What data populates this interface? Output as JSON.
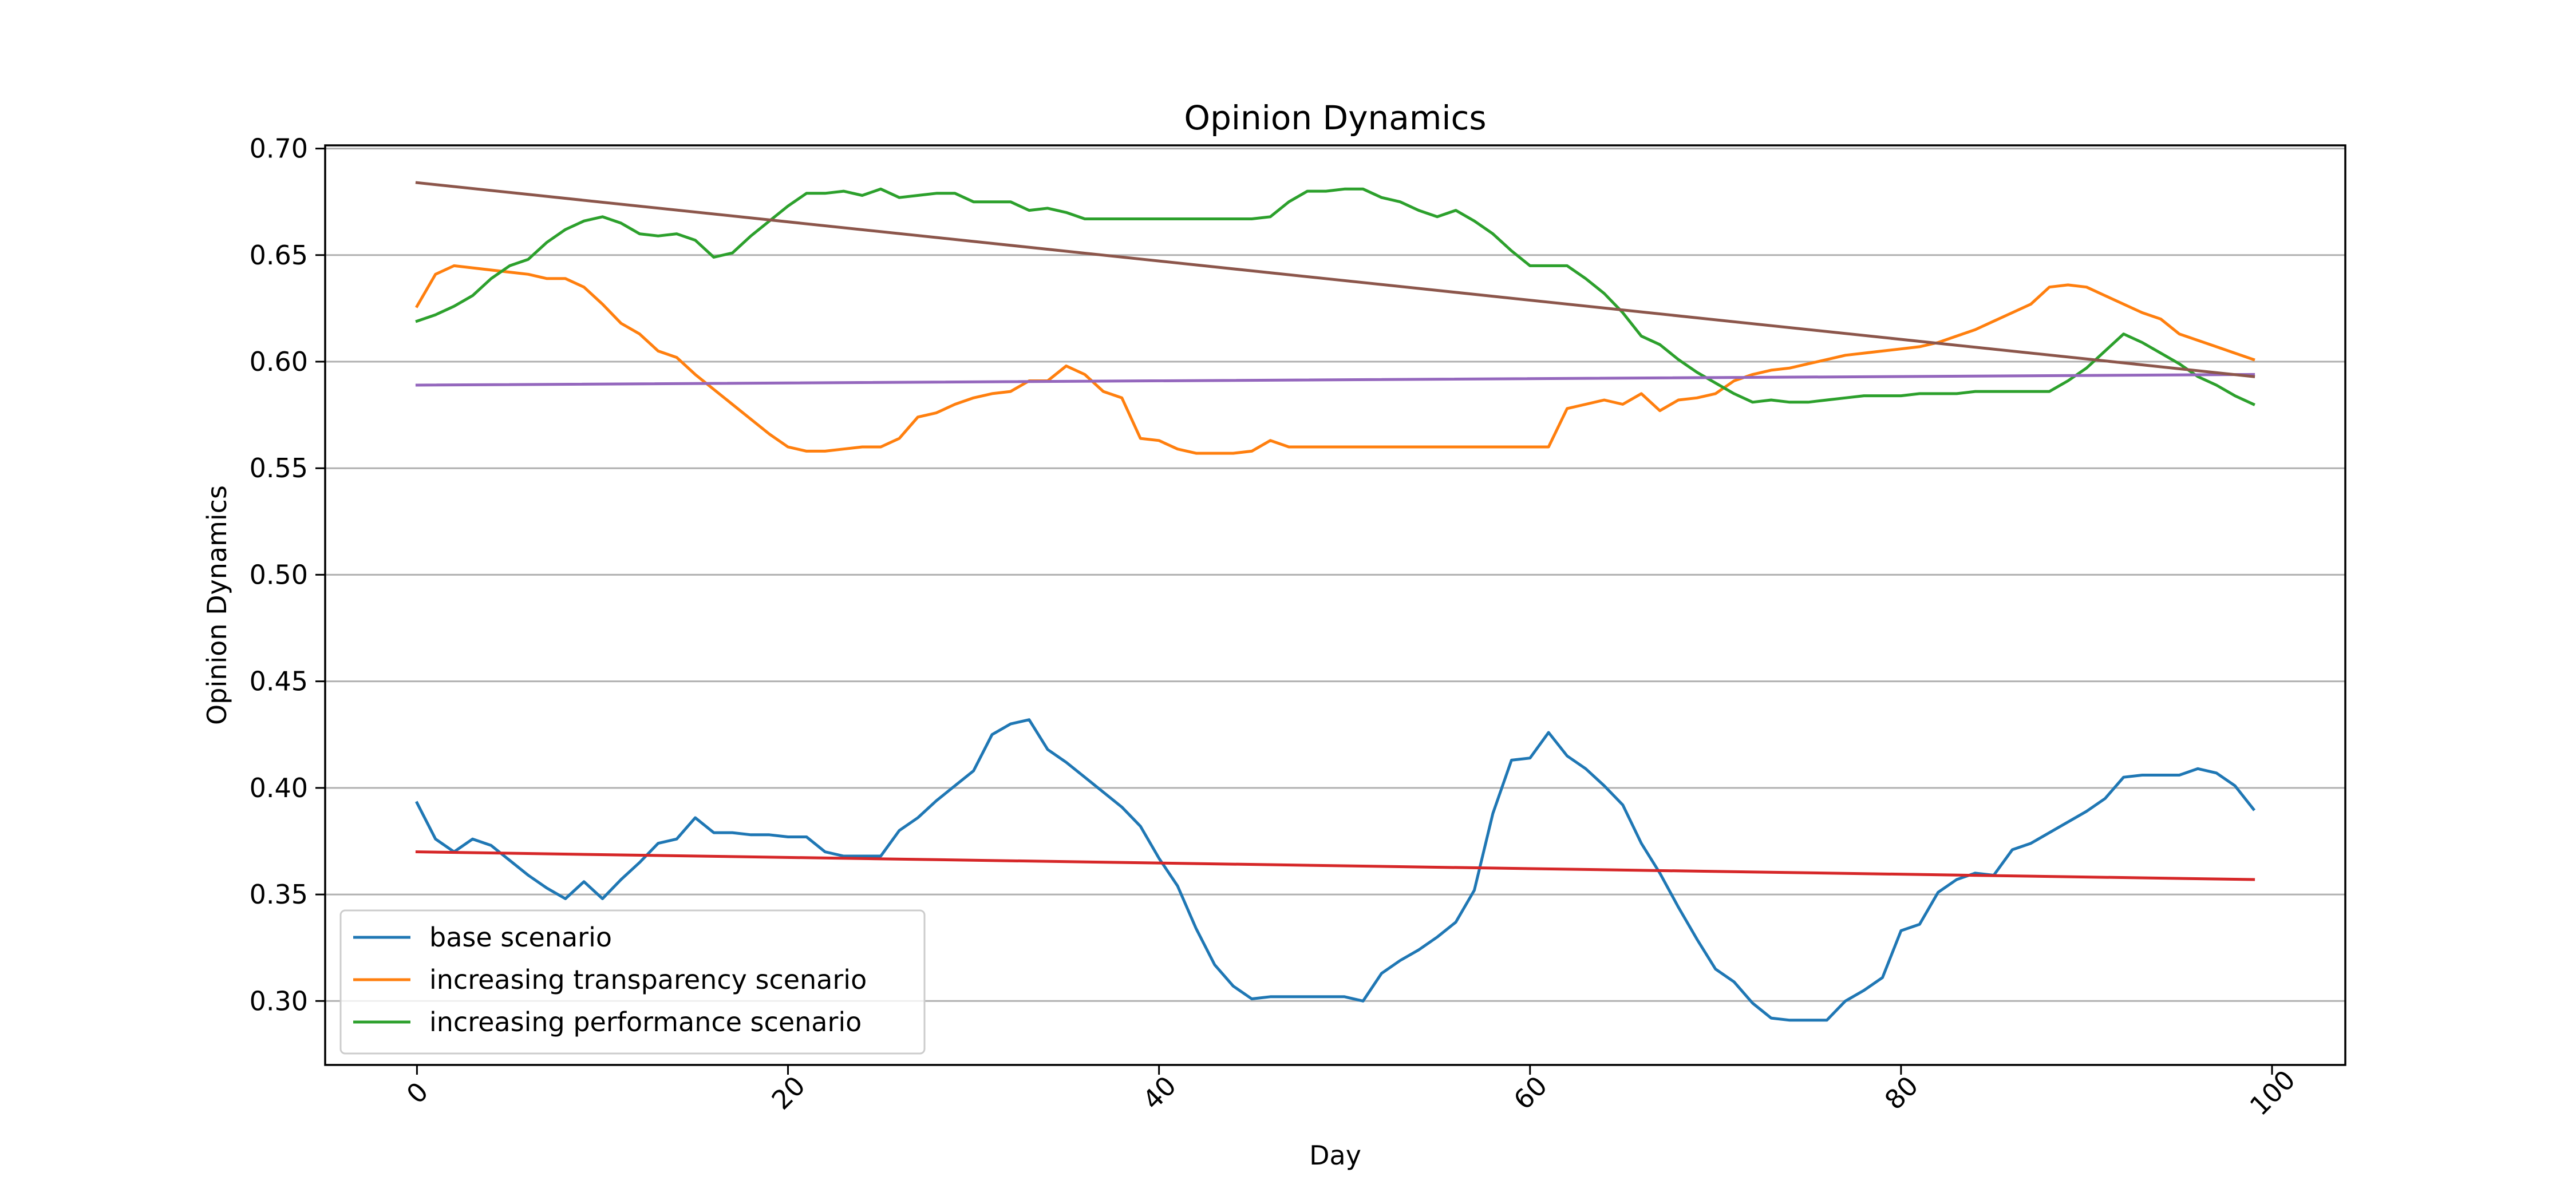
{
  "chart_data": {
    "type": "line",
    "title": "Opinion Dynamics",
    "xlabel": "Day",
    "ylabel": "Opinion Dynamics",
    "xlim": [
      -4.95,
      103.95
    ],
    "ylim": [
      0.27,
      0.7015
    ],
    "x_ticks": [
      0,
      20,
      40,
      60,
      80,
      100
    ],
    "x_tick_labels": [
      "0",
      "20",
      "40",
      "60",
      "80",
      "100"
    ],
    "y_ticks": [
      0.3,
      0.35,
      0.4,
      0.45,
      0.5,
      0.55,
      0.6,
      0.65,
      0.7
    ],
    "y_tick_labels": [
      "0.30",
      "0.35",
      "0.40",
      "0.45",
      "0.50",
      "0.55",
      "0.60",
      "0.65",
      "0.70"
    ],
    "x_tick_rotation": 45,
    "grid": "horizontal",
    "legend_position": "lower-left",
    "x": [
      0,
      1,
      2,
      3,
      4,
      5,
      6,
      7,
      8,
      9,
      10,
      11,
      12,
      13,
      14,
      15,
      16,
      17,
      18,
      19,
      20,
      21,
      22,
      23,
      24,
      25,
      26,
      27,
      28,
      29,
      30,
      31,
      32,
      33,
      34,
      35,
      36,
      37,
      38,
      39,
      40,
      41,
      42,
      43,
      44,
      45,
      46,
      47,
      48,
      49,
      50,
      51,
      52,
      53,
      54,
      55,
      56,
      57,
      58,
      59,
      60,
      61,
      62,
      63,
      64,
      65,
      66,
      67,
      68,
      69,
      70,
      71,
      72,
      73,
      74,
      75,
      76,
      77,
      78,
      79,
      80,
      81,
      82,
      83,
      84,
      85,
      86,
      87,
      88,
      89,
      90,
      91,
      92,
      93,
      94,
      95,
      96,
      97,
      98,
      99
    ],
    "series": [
      {
        "name": "base scenario",
        "color": "#1f77b4",
        "in_legend": true,
        "values": [
          0.393,
          0.376,
          0.37,
          0.376,
          0.373,
          0.366,
          0.359,
          0.353,
          0.348,
          0.356,
          0.348,
          0.357,
          0.365,
          0.374,
          0.376,
          0.386,
          0.379,
          0.379,
          0.378,
          0.378,
          0.377,
          0.377,
          0.37,
          0.368,
          0.368,
          0.368,
          0.38,
          0.386,
          0.394,
          0.401,
          0.408,
          0.425,
          0.43,
          0.432,
          0.418,
          0.412,
          0.405,
          0.398,
          0.391,
          0.382,
          0.367,
          0.354,
          0.334,
          0.317,
          0.307,
          0.301,
          0.302,
          0.302,
          0.302,
          0.302,
          0.302,
          0.3,
          0.313,
          0.319,
          0.324,
          0.33,
          0.337,
          0.352,
          0.388,
          0.413,
          0.414,
          0.426,
          0.415,
          0.409,
          0.401,
          0.392,
          0.374,
          0.36,
          0.344,
          0.329,
          0.315,
          0.309,
          0.299,
          0.292,
          0.291,
          0.291,
          0.291,
          0.3,
          0.305,
          0.311,
          0.333,
          0.336,
          0.351,
          0.357,
          0.36,
          0.359,
          0.371,
          0.374,
          0.379,
          0.384,
          0.389,
          0.395,
          0.405,
          0.406,
          0.406,
          0.406,
          0.409,
          0.407,
          0.401,
          0.39
        ]
      },
      {
        "name": "increasing transparency scenario",
        "color": "#ff7f0e",
        "in_legend": true,
        "values": [
          0.626,
          0.641,
          0.645,
          0.644,
          0.643,
          0.642,
          0.641,
          0.639,
          0.639,
          0.635,
          0.627,
          0.618,
          0.613,
          0.605,
          0.602,
          0.594,
          0.587,
          0.58,
          0.573,
          0.566,
          0.56,
          0.558,
          0.558,
          0.559,
          0.56,
          0.56,
          0.564,
          0.574,
          0.576,
          0.58,
          0.583,
          0.585,
          0.586,
          0.591,
          0.591,
          0.598,
          0.594,
          0.586,
          0.583,
          0.564,
          0.563,
          0.559,
          0.557,
          0.557,
          0.557,
          0.558,
          0.563,
          0.56,
          0.56,
          0.56,
          0.56,
          0.56,
          0.56,
          0.56,
          0.56,
          0.56,
          0.56,
          0.56,
          0.56,
          0.56,
          0.56,
          0.56,
          0.578,
          0.58,
          0.582,
          0.58,
          0.585,
          0.577,
          0.582,
          0.583,
          0.585,
          0.591,
          0.594,
          0.596,
          0.597,
          0.599,
          0.601,
          0.603,
          0.604,
          0.605,
          0.606,
          0.607,
          0.609,
          0.612,
          0.615,
          0.619,
          0.623,
          0.627,
          0.635,
          0.636,
          0.635,
          0.631,
          0.627,
          0.623,
          0.62,
          0.613,
          0.61,
          0.607,
          0.604,
          0.601
        ]
      },
      {
        "name": "increasing performance scenario",
        "color": "#2ca02c",
        "in_legend": true,
        "values": [
          0.619,
          0.622,
          0.626,
          0.631,
          0.639,
          0.645,
          0.648,
          0.656,
          0.662,
          0.666,
          0.668,
          0.665,
          0.66,
          0.659,
          0.66,
          0.657,
          0.649,
          0.651,
          0.659,
          0.666,
          0.673,
          0.679,
          0.679,
          0.68,
          0.678,
          0.681,
          0.677,
          0.678,
          0.679,
          0.679,
          0.675,
          0.675,
          0.675,
          0.671,
          0.672,
          0.67,
          0.667,
          0.667,
          0.667,
          0.667,
          0.667,
          0.667,
          0.667,
          0.667,
          0.667,
          0.667,
          0.668,
          0.675,
          0.68,
          0.68,
          0.681,
          0.681,
          0.677,
          0.675,
          0.671,
          0.668,
          0.671,
          0.666,
          0.66,
          0.652,
          0.645,
          0.645,
          0.645,
          0.639,
          0.632,
          0.623,
          0.612,
          0.608,
          0.601,
          0.595,
          0.59,
          0.585,
          0.581,
          0.582,
          0.581,
          0.581,
          0.582,
          0.583,
          0.584,
          0.584,
          0.584,
          0.585,
          0.585,
          0.585,
          0.586,
          0.586,
          0.586,
          0.586,
          0.586,
          0.591,
          0.597,
          0.605,
          0.613,
          0.609,
          0.604,
          0.599,
          0.593,
          0.589,
          0.584,
          0.58
        ]
      },
      {
        "name": "",
        "color": "#d62728",
        "in_legend": false,
        "values_endpoints": [
          0.37,
          0.357
        ]
      },
      {
        "name": "",
        "color": "#9467bd",
        "in_legend": false,
        "values_endpoints": [
          0.589,
          0.594
        ]
      },
      {
        "name": "",
        "color": "#8c564b",
        "in_legend": false,
        "values_endpoints": [
          0.684,
          0.593
        ]
      }
    ]
  }
}
